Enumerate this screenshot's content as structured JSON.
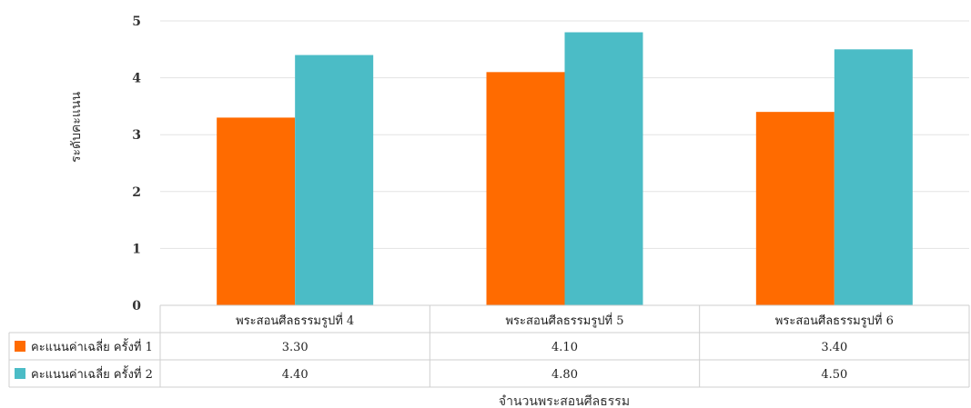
{
  "chart_data": {
    "type": "bar",
    "categories": [
      "พระสอนศีลธรรมรูปที่ 4",
      "พระสอนศีลธรรมรูปที่ 5",
      "พระสอนศีลธรรมรูปที่ 6"
    ],
    "series": [
      {
        "name": "คะแนนค่าเฉลี่ย ครั้งที่ 1",
        "values": [
          3.3,
          4.1,
          3.4
        ],
        "labels": [
          "3.30",
          "4.10",
          "3.40"
        ],
        "color": "#FF6B00"
      },
      {
        "name": "คะแนนค่าเฉลี่ย ครั้งที่ 2",
        "values": [
          4.4,
          4.8,
          4.5
        ],
        "labels": [
          "4.40",
          "4.80",
          "4.50"
        ],
        "color": "#4BBCC6"
      }
    ],
    "ylabel": "ระดับคะแนน",
    "xlabel": "จำนวนพระสอนศีลธรรม",
    "ylim": [
      0,
      5
    ],
    "yticks": [
      "0",
      "1",
      "2",
      "3",
      "4",
      "5"
    ],
    "grid": true,
    "data_table": true
  }
}
